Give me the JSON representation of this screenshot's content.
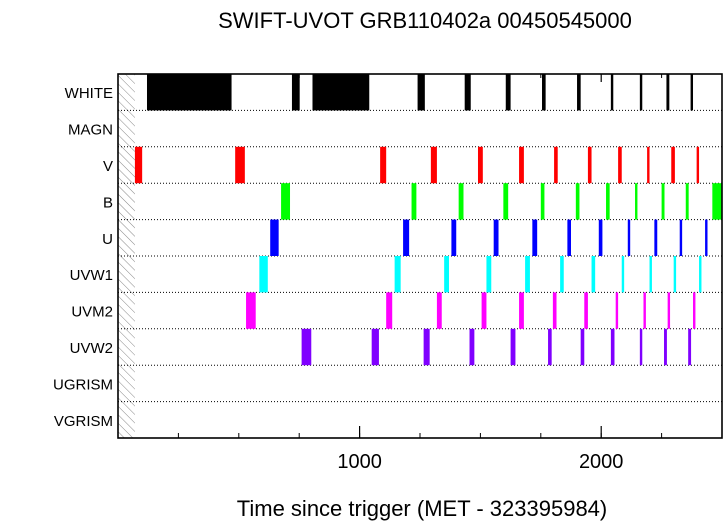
{
  "chart_data": {
    "type": "bar",
    "subtype": "timeline",
    "title": "SWIFT-UVOT GRB110402a 00450545000",
    "xlabel": "Time since trigger (MET - 323395984)",
    "ylabel": "",
    "xlim": [
      0,
      2500
    ],
    "xticks": [
      1000,
      2000
    ],
    "x_minor_ticks": [
      250,
      500,
      750,
      1000,
      1250,
      1500,
      1750,
      2000,
      2250
    ],
    "x_tick_labels": [
      "1000",
      "2000"
    ],
    "x_top_minor_ticks": [
      250,
      750,
      1250,
      1750,
      2250
    ],
    "rows": [
      "WHITE",
      "MAGN",
      "V",
      "B",
      "U",
      "UVW1",
      "UVM2",
      "UVW2",
      "UGRISM",
      "VGRISM"
    ],
    "hatched_region": [
      0,
      70
    ],
    "grid": true,
    "series": [
      {
        "name": "WHITE",
        "color": "#000000",
        "exposures": [
          [
            120,
            470
          ],
          [
            720,
            752
          ],
          [
            805,
            1040
          ],
          [
            1240,
            1270
          ],
          [
            1435,
            1460
          ],
          [
            1605,
            1625
          ],
          [
            1755,
            1770
          ],
          [
            1900,
            1915
          ],
          [
            2040,
            2050
          ],
          [
            2160,
            2170
          ],
          [
            2270,
            2282
          ],
          [
            2370,
            2380
          ]
        ]
      },
      {
        "name": "MAGN",
        "color": "#d020d0",
        "exposures": []
      },
      {
        "name": "V",
        "color": "#ff0000",
        "exposures": [
          [
            70,
            100
          ],
          [
            485,
            525
          ],
          [
            1085,
            1110
          ],
          [
            1295,
            1320
          ],
          [
            1490,
            1510
          ],
          [
            1660,
            1680
          ],
          [
            1805,
            1820
          ],
          [
            1945,
            1960
          ],
          [
            2070,
            2085
          ],
          [
            2190,
            2200
          ],
          [
            2290,
            2305
          ],
          [
            2395,
            2405
          ]
        ]
      },
      {
        "name": "B",
        "color": "#00ff00",
        "exposures": [
          [
            675,
            712
          ],
          [
            1215,
            1235
          ],
          [
            1410,
            1430
          ],
          [
            1595,
            1615
          ],
          [
            1750,
            1765
          ],
          [
            1895,
            1910
          ],
          [
            2020,
            2035
          ],
          [
            2140,
            2150
          ],
          [
            2250,
            2262
          ],
          [
            2350,
            2362
          ],
          [
            2460,
            2500
          ]
        ]
      },
      {
        "name": "U",
        "color": "#0000ff",
        "exposures": [
          [
            630,
            665
          ],
          [
            1180,
            1205
          ],
          [
            1380,
            1400
          ],
          [
            1555,
            1575
          ],
          [
            1715,
            1735
          ],
          [
            1860,
            1875
          ],
          [
            1990,
            2005
          ],
          [
            2110,
            2120
          ],
          [
            2220,
            2232
          ],
          [
            2325,
            2335
          ],
          [
            2430,
            2440
          ]
        ]
      },
      {
        "name": "UVW1",
        "color": "#00ffff",
        "exposures": [
          [
            585,
            620
          ],
          [
            1145,
            1170
          ],
          [
            1350,
            1370
          ],
          [
            1525,
            1545
          ],
          [
            1685,
            1705
          ],
          [
            1830,
            1845
          ],
          [
            1960,
            1975
          ],
          [
            2085,
            2095
          ],
          [
            2200,
            2210
          ],
          [
            2300,
            2310
          ],
          [
            2405,
            2415
          ]
        ]
      },
      {
        "name": "UVM2",
        "color": "#ff00ff",
        "exposures": [
          [
            530,
            570
          ],
          [
            1110,
            1135
          ],
          [
            1320,
            1340
          ],
          [
            1505,
            1525
          ],
          [
            1660,
            1680
          ],
          [
            1800,
            1815
          ],
          [
            1930,
            1945
          ],
          [
            2060,
            2070
          ],
          [
            2175,
            2185
          ],
          [
            2275,
            2285
          ],
          [
            2380,
            2390
          ]
        ]
      },
      {
        "name": "UVW2",
        "color": "#8000ff",
        "exposures": [
          [
            760,
            800
          ],
          [
            1050,
            1080
          ],
          [
            1265,
            1290
          ],
          [
            1455,
            1475
          ],
          [
            1625,
            1645
          ],
          [
            1780,
            1795
          ],
          [
            1915,
            1930
          ],
          [
            2040,
            2055
          ],
          [
            2160,
            2170
          ],
          [
            2260,
            2272
          ],
          [
            2360,
            2372
          ]
        ]
      },
      {
        "name": "UGRISM",
        "color": "#888888",
        "exposures": []
      },
      {
        "name": "VGRISM",
        "color": "#888888",
        "exposures": []
      }
    ]
  }
}
